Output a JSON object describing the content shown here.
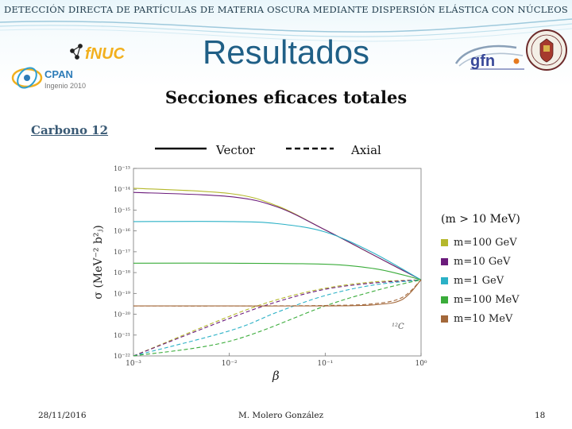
{
  "header": {
    "title": "DETECCIÓN DIRECTA DE PARTÍCULAS DE MATERIA OSCURA MEDIANTE DISPERSIÓN ELÁSTICA CON NÚCLEOS"
  },
  "slide": {
    "title": "Resultados",
    "subtitle": "Secciones eficaces totales",
    "section_label": "Carbono 12"
  },
  "logos": {
    "fnuc": "fNUC",
    "cpan_name": "CPAN",
    "cpan_sub": "Ingenio 2010",
    "gfn": "gfn"
  },
  "colors": {
    "title_blue": "#1f5f86",
    "m100GeV": "#b5b82c",
    "m10GeV": "#6b1b7b",
    "m1GeV": "#2bb1c6",
    "m100MeV": "#3aac3a",
    "m10MeV": "#a3683a"
  },
  "chart_data": {
    "type": "line",
    "xlabel": "β",
    "ylabel": "σ (MeV⁻² b²ⱼ)",
    "xscale": "log",
    "yscale": "log",
    "xlim": [
      0.001,
      1
    ],
    "ylim": [
      1e-22,
      1e-13
    ],
    "x_ticks": [
      "10⁻³",
      "10⁻²",
      "10⁻¹",
      "10⁰"
    ],
    "y_ticks": [
      "10⁻²²",
      "10⁻²¹",
      "10⁻²⁰",
      "10⁻¹⁹",
      "10⁻¹⁸",
      "10⁻¹⁷",
      "10⁻¹⁶",
      "10⁻¹⁵",
      "10⁻¹⁴",
      "10⁻¹³"
    ],
    "annotation": "¹²C",
    "line_styles": [
      {
        "label": "Vector",
        "style": "solid"
      },
      {
        "label": "Axial",
        "style": "dashed"
      }
    ],
    "mass_legend_title": "(m > 10 MeV)",
    "series": [
      {
        "name": "m=100 GeV",
        "color": "#b5b82c",
        "vector_log10": [
          [
            -3,
            -13.95
          ],
          [
            -2,
            -14.2
          ],
          [
            -1.5,
            -14.8
          ],
          [
            -1,
            -15.95
          ],
          [
            -0.5,
            -17.15
          ],
          [
            0,
            -18.35
          ]
        ],
        "axial_log10": [
          [
            -3,
            -22.0
          ],
          [
            -2,
            -20.1
          ],
          [
            -1.5,
            -19.3
          ],
          [
            -1,
            -18.75
          ],
          [
            -0.5,
            -18.45
          ],
          [
            0,
            -18.35
          ]
        ]
      },
      {
        "name": "m=10 GeV",
        "color": "#6b1b7b",
        "vector_log10": [
          [
            -3,
            -14.15
          ],
          [
            -2,
            -14.35
          ],
          [
            -1.5,
            -14.85
          ],
          [
            -1,
            -15.95
          ],
          [
            -0.5,
            -17.15
          ],
          [
            0,
            -18.35
          ]
        ],
        "axial_log10": [
          [
            -3,
            -22.0
          ],
          [
            -2,
            -20.2
          ],
          [
            -1.5,
            -19.4
          ],
          [
            -1,
            -18.8
          ],
          [
            -0.5,
            -18.5
          ],
          [
            0,
            -18.35
          ]
        ]
      },
      {
        "name": "m=1 GeV",
        "color": "#2bb1c6",
        "vector_log10": [
          [
            -3,
            -15.55
          ],
          [
            -2,
            -15.55
          ],
          [
            -1.5,
            -15.65
          ],
          [
            -1,
            -16.05
          ],
          [
            -0.5,
            -17.05
          ],
          [
            0,
            -18.35
          ]
        ],
        "axial_log10": [
          [
            -3,
            -22.0
          ],
          [
            -2,
            -20.8
          ],
          [
            -1.5,
            -19.9
          ],
          [
            -1,
            -19.1
          ],
          [
            -0.5,
            -18.6
          ],
          [
            0,
            -18.35
          ]
        ]
      },
      {
        "name": "m=100 MeV",
        "color": "#3aac3a",
        "vector_log10": [
          [
            -3,
            -17.55
          ],
          [
            -2,
            -17.55
          ],
          [
            -1,
            -17.6
          ],
          [
            -0.5,
            -17.8
          ],
          [
            -0.2,
            -18.1
          ],
          [
            0,
            -18.35
          ]
        ],
        "axial_log10": [
          [
            -3,
            -22.0
          ],
          [
            -2,
            -21.3
          ],
          [
            -1,
            -19.6
          ],
          [
            -0.5,
            -18.9
          ],
          [
            -0.2,
            -18.55
          ],
          [
            0,
            -18.35
          ]
        ]
      },
      {
        "name": "m=10 MeV",
        "color": "#a3683a",
        "vector_log10": [
          [
            -3,
            -19.6
          ],
          [
            -2,
            -19.6
          ],
          [
            -1,
            -19.6
          ],
          [
            -0.5,
            -19.55
          ],
          [
            -0.2,
            -19.3
          ],
          [
            0,
            -18.35
          ]
        ],
        "axial_log10": [
          [
            -3,
            -19.6
          ],
          [
            -2,
            -19.6
          ],
          [
            -1,
            -19.58
          ],
          [
            -0.5,
            -19.5
          ],
          [
            -0.2,
            -19.2
          ],
          [
            0,
            -18.35
          ]
        ]
      }
    ]
  },
  "footer": {
    "date": "28/11/2016",
    "author": "M. Molero González",
    "page": "18"
  }
}
